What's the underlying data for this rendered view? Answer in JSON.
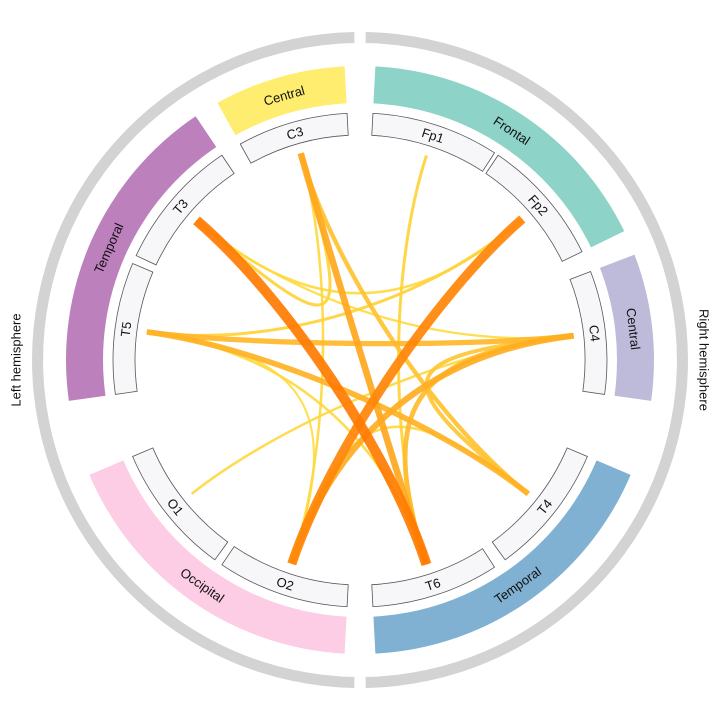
{
  "hemispheres": [
    {
      "id": "left",
      "label": "Left hemisphere",
      "start": 181,
      "end": 359,
      "color": "#d3d3d3"
    },
    {
      "id": "right",
      "label": "Right hemisphere",
      "start": 1,
      "end": 179,
      "color": "#d3d3d3"
    }
  ],
  "regions": [
    {
      "id": "frontal",
      "label": "Frontal",
      "start": 3,
      "end": 64,
      "color": "#8dd3c7"
    },
    {
      "id": "central-right",
      "label": "Central",
      "start": 69,
      "end": 98,
      "color": "#bebada"
    },
    {
      "id": "temporal-right",
      "label": "Temporal",
      "start": 113,
      "end": 177,
      "color": "#80b1d3"
    },
    {
      "id": "occipital",
      "label": "Occipital",
      "start": 183,
      "end": 247,
      "color": "#fccde5"
    },
    {
      "id": "temporal-left",
      "label": "Temporal",
      "start": 262,
      "end": 326,
      "color": "#bc80bd"
    },
    {
      "id": "central-left",
      "label": "Central",
      "start": 331,
      "end": 357,
      "color": "#ffed6f"
    }
  ],
  "channels": [
    {
      "name": "Fp1",
      "start": 3,
      "end": 33
    },
    {
      "name": "Fp2",
      "start": 34,
      "end": 64
    },
    {
      "name": "C4",
      "start": 69,
      "end": 98
    },
    {
      "name": "T4",
      "start": 113,
      "end": 144
    },
    {
      "name": "T6",
      "start": 147,
      "end": 177
    },
    {
      "name": "O2",
      "start": 183,
      "end": 214
    },
    {
      "name": "O1",
      "start": 216,
      "end": 247
    },
    {
      "name": "T5",
      "start": 262,
      "end": 293
    },
    {
      "name": "T3",
      "start": 295,
      "end": 326
    },
    {
      "name": "C3",
      "start": 331,
      "end": 357
    }
  ],
  "connections": [
    {
      "from": "T3",
      "to": "T6",
      "strength": 1.0
    },
    {
      "from": "Fp2",
      "to": "O2",
      "strength": 0.9
    },
    {
      "from": "C3",
      "to": "T6",
      "strength": 0.6
    },
    {
      "from": "C4",
      "to": "O2",
      "strength": 0.55
    },
    {
      "from": "T5",
      "to": "T4",
      "strength": 0.5
    },
    {
      "from": "T5",
      "to": "C4",
      "strength": 0.45
    },
    {
      "from": "C4",
      "to": "T6",
      "strength": 0.4
    },
    {
      "from": "C3",
      "to": "T4",
      "strength": 0.35
    },
    {
      "from": "C4",
      "to": "T4",
      "strength": 0.3
    },
    {
      "from": "Fp1",
      "to": "T6",
      "strength": 0.2
    },
    {
      "from": "C3",
      "to": "T3",
      "strength": 0.2
    },
    {
      "from": "T5",
      "to": "Fp2",
      "strength": 0.2
    },
    {
      "from": "C4",
      "to": "O1",
      "strength": 0.15
    },
    {
      "from": "Fp2",
      "to": "T3",
      "strength": 0.15
    },
    {
      "from": "T5",
      "to": "T6",
      "strength": 0.15
    },
    {
      "from": "C3",
      "to": "O2",
      "strength": 0.15
    },
    {
      "from": "O2",
      "to": "T4",
      "strength": 0.15
    },
    {
      "from": "C4",
      "to": "T3",
      "strength": 0.12
    },
    {
      "from": "T5",
      "to": "O2",
      "strength": 0.1
    }
  ],
  "colors": {
    "channel_fill": "#f7f7f9",
    "channel_stroke": "#555555",
    "link_weak": "#ffe84a",
    "link_strong": "#ff7b00"
  }
}
